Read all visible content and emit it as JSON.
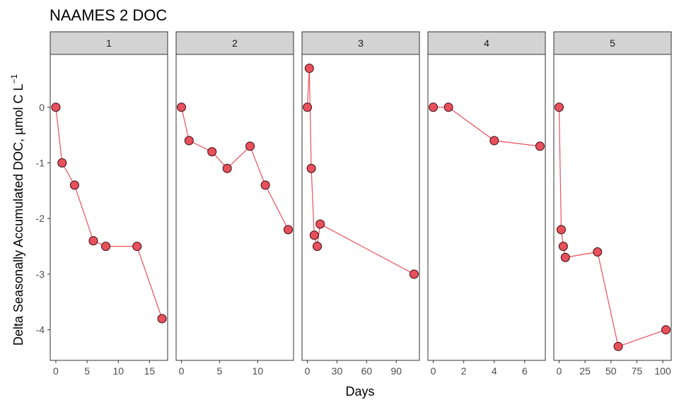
{
  "chart_data": {
    "type": "line",
    "title": "NAAMES 2 DOC",
    "xlabel": "Days",
    "ylabel_main": "Delta Seasonally Accumulated DOC, µmol C L",
    "ylabel_superscript": "−1",
    "ylim": [
      -4.55,
      0.95
    ],
    "yticks": [
      0,
      -1,
      -2,
      -3,
      -4
    ],
    "colors": {
      "line": "#e8505b",
      "point_fill": "#e8505b",
      "strip": "#d3d3d3"
    },
    "grid": false,
    "facets": [
      {
        "label": "1",
        "xlim": [
          -0.9,
          17.9
        ],
        "xticks": [
          0,
          5,
          10,
          15
        ],
        "x": [
          0,
          1,
          3,
          6,
          8,
          13,
          17
        ],
        "y": [
          0,
          -1.0,
          -1.4,
          -2.4,
          -2.5,
          -2.5,
          -3.8
        ]
      },
      {
        "label": "2",
        "xlim": [
          -0.7,
          14.7
        ],
        "xticks": [
          0,
          5,
          10
        ],
        "x": [
          0,
          1,
          4,
          6,
          9,
          11,
          14
        ],
        "y": [
          0,
          -0.6,
          -0.8,
          -1.1,
          -0.7,
          -1.4,
          -2.2
        ]
      },
      {
        "label": "3",
        "xlim": [
          -5.4,
          113.4
        ],
        "xticks": [
          0,
          30,
          60,
          90
        ],
        "x": [
          0,
          2,
          4,
          7,
          10,
          13,
          108
        ],
        "y": [
          0,
          0.7,
          -1.1,
          -2.3,
          -2.5,
          -2.1,
          -3.0
        ]
      },
      {
        "label": "4",
        "xlim": [
          -0.35,
          7.35
        ],
        "xticks": [
          0,
          2,
          4,
          6
        ],
        "x": [
          0,
          1,
          4,
          7
        ],
        "y": [
          0,
          0,
          -0.6,
          -0.7
        ]
      },
      {
        "label": "5",
        "xlim": [
          -5.15,
          108.15
        ],
        "xticks": [
          0,
          25,
          50,
          75,
          100
        ],
        "x": [
          0,
          2,
          4,
          6,
          37,
          57,
          103
        ],
        "y": [
          0,
          -2.2,
          -2.5,
          -2.7,
          -2.6,
          -4.3,
          -4.0
        ]
      }
    ]
  }
}
